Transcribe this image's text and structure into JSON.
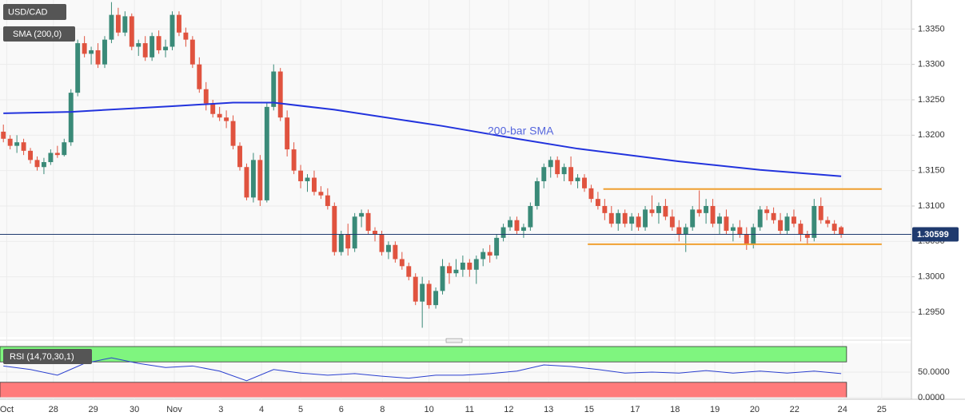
{
  "chart_data": [
    {
      "type": "candlestick",
      "title": "USD/CAD",
      "indicator": "SMA (200,0)",
      "up_color": "#3a8a78",
      "down_color": "#e0533f",
      "ohlc": [
        [
          1.3205,
          1.3215,
          1.319,
          1.3195
        ],
        [
          1.3195,
          1.32,
          1.318,
          1.3185
        ],
        [
          1.3185,
          1.32,
          1.3175,
          1.319
        ],
        [
          1.319,
          1.3195,
          1.3172,
          1.3178
        ],
        [
          1.3178,
          1.3182,
          1.316,
          1.3165
        ],
        [
          1.3165,
          1.317,
          1.315,
          1.3155
        ],
        [
          1.3155,
          1.3168,
          1.3145,
          1.3162
        ],
        [
          1.3162,
          1.318,
          1.3158,
          1.3175
        ],
        [
          1.3175,
          1.3185,
          1.3168,
          1.3172
        ],
        [
          1.3172,
          1.3195,
          1.317,
          1.319
        ],
        [
          1.319,
          1.3265,
          1.3185,
          1.326
        ],
        [
          1.326,
          1.3335,
          1.3255,
          1.333
        ],
        [
          1.333,
          1.334,
          1.331,
          1.3315
        ],
        [
          1.3315,
          1.3325,
          1.33,
          1.332
        ],
        [
          1.332,
          1.333,
          1.3295,
          1.33
        ],
        [
          1.33,
          1.334,
          1.3295,
          1.3335
        ],
        [
          1.3335,
          1.3388,
          1.333,
          1.337
        ],
        [
          1.337,
          1.338,
          1.334,
          1.3345
        ],
        [
          1.3345,
          1.3375,
          1.334,
          1.3368
        ],
        [
          1.3368,
          1.3372,
          1.332,
          1.3325
        ],
        [
          1.3325,
          1.3335,
          1.3312,
          1.333
        ],
        [
          1.333,
          1.334,
          1.3305,
          1.331
        ],
        [
          1.331,
          1.3345,
          1.3305,
          1.334
        ],
        [
          1.334,
          1.3348,
          1.3315,
          1.332
        ],
        [
          1.332,
          1.3335,
          1.331,
          1.3325
        ],
        [
          1.3325,
          1.3375,
          1.332,
          1.337
        ],
        [
          1.337,
          1.3375,
          1.334,
          1.3345
        ],
        [
          1.3345,
          1.3352,
          1.3325,
          1.3335
        ],
        [
          1.3335,
          1.334,
          1.3295,
          1.33
        ],
        [
          1.33,
          1.331,
          1.326,
          1.3265
        ],
        [
          1.3265,
          1.3275,
          1.3235,
          1.3245
        ],
        [
          1.3245,
          1.325,
          1.3225,
          1.323
        ],
        [
          1.323,
          1.324,
          1.322,
          1.3225
        ],
        [
          1.3225,
          1.3235,
          1.321,
          1.322
        ],
        [
          1.322,
          1.3228,
          1.318,
          1.3185
        ],
        [
          1.3185,
          1.319,
          1.315,
          1.3155
        ],
        [
          1.3155,
          1.316,
          1.3108,
          1.3112
        ],
        [
          1.3112,
          1.3175,
          1.3105,
          1.3165
        ],
        [
          1.3165,
          1.3172,
          1.31,
          1.3108
        ],
        [
          1.3108,
          1.3245,
          1.3105,
          1.324
        ],
        [
          1.324,
          1.33,
          1.3235,
          1.329
        ],
        [
          1.329,
          1.3295,
          1.322,
          1.3225
        ],
        [
          1.3225,
          1.3235,
          1.317,
          1.318
        ],
        [
          1.318,
          1.319,
          1.3145,
          1.315
        ],
        [
          1.315,
          1.3158,
          1.3125,
          1.3135
        ],
        [
          1.3135,
          1.3145,
          1.312,
          1.314
        ],
        [
          1.314,
          1.315,
          1.3115,
          1.312
        ],
        [
          1.312,
          1.3128,
          1.311,
          1.3115
        ],
        [
          1.3115,
          1.3125,
          1.3095,
          1.31
        ],
        [
          1.31,
          1.3105,
          1.303,
          1.3035
        ],
        [
          1.3035,
          1.3065,
          1.303,
          1.306
        ],
        [
          1.306,
          1.3075,
          1.303,
          1.304
        ],
        [
          1.304,
          1.309,
          1.3035,
          1.3085
        ],
        [
          1.3085,
          1.3095,
          1.307,
          1.309
        ],
        [
          1.309,
          1.3095,
          1.306,
          1.3065
        ],
        [
          1.3065,
          1.307,
          1.305,
          1.306
        ],
        [
          1.306,
          1.3065,
          1.303,
          1.3035
        ],
        [
          1.3035,
          1.305,
          1.3025,
          1.3045
        ],
        [
          1.3045,
          1.305,
          1.302,
          1.3025
        ],
        [
          1.3025,
          1.3035,
          1.301,
          1.3015
        ],
        [
          1.3015,
          1.302,
          1.2995,
          1.3
        ],
        [
          1.3,
          1.3005,
          1.296,
          1.2965
        ],
        [
          1.2965,
          1.3,
          1.2928,
          1.299
        ],
        [
          1.299,
          1.2995,
          1.2955,
          1.296
        ],
        [
          1.296,
          1.2985,
          1.2955,
          1.298
        ],
        [
          1.298,
          1.3025,
          1.2975,
          1.3015
        ],
        [
          1.3015,
          1.302,
          1.299,
          1.3005
        ],
        [
          1.3005,
          1.3025,
          1.3,
          1.301
        ],
        [
          1.301,
          1.303,
          1.3,
          1.302
        ],
        [
          1.302,
          1.3025,
          1.3,
          1.301
        ],
        [
          1.301,
          1.303,
          1.299,
          1.3025
        ],
        [
          1.3025,
          1.304,
          1.3015,
          1.3035
        ],
        [
          1.3035,
          1.3045,
          1.302,
          1.303
        ],
        [
          1.303,
          1.306,
          1.3025,
          1.3055
        ],
        [
          1.3055,
          1.3075,
          1.305,
          1.307
        ],
        [
          1.307,
          1.3085,
          1.3065,
          1.308
        ],
        [
          1.308,
          1.3085,
          1.306,
          1.3065
        ],
        [
          1.3065,
          1.3075,
          1.3055,
          1.307
        ],
        [
          1.307,
          1.3105,
          1.3065,
          1.31
        ],
        [
          1.31,
          1.314,
          1.3095,
          1.3135
        ],
        [
          1.3135,
          1.316,
          1.3125,
          1.3155
        ],
        [
          1.3155,
          1.317,
          1.314,
          1.3165
        ],
        [
          1.3165,
          1.317,
          1.314,
          1.3145
        ],
        [
          1.3145,
          1.316,
          1.3135,
          1.3155
        ],
        [
          1.3155,
          1.317,
          1.313,
          1.3135
        ],
        [
          1.3135,
          1.3145,
          1.3125,
          1.314
        ],
        [
          1.314,
          1.3145,
          1.312,
          1.3125
        ],
        [
          1.3125,
          1.313,
          1.3105,
          1.311
        ],
        [
          1.311,
          1.312,
          1.3095,
          1.31
        ],
        [
          1.31,
          1.311,
          1.308,
          1.309
        ],
        [
          1.309,
          1.31,
          1.307,
          1.3075
        ],
        [
          1.3075,
          1.3095,
          1.3065,
          1.309
        ],
        [
          1.309,
          1.3095,
          1.307,
          1.3075
        ],
        [
          1.3075,
          1.309,
          1.3065,
          1.3085
        ],
        [
          1.3085,
          1.309,
          1.3065,
          1.307
        ],
        [
          1.307,
          1.31,
          1.3065,
          1.3095
        ],
        [
          1.3095,
          1.3115,
          1.3085,
          1.309
        ],
        [
          1.309,
          1.3105,
          1.3075,
          1.31
        ],
        [
          1.31,
          1.311,
          1.308,
          1.3085
        ],
        [
          1.3085,
          1.3095,
          1.3065,
          1.307
        ],
        [
          1.307,
          1.308,
          1.305,
          1.306
        ],
        [
          1.306,
          1.3075,
          1.3035,
          1.307
        ],
        [
          1.307,
          1.31,
          1.3065,
          1.3095
        ],
        [
          1.3095,
          1.3122,
          1.3085,
          1.309
        ],
        [
          1.309,
          1.311,
          1.3075,
          1.31
        ],
        [
          1.31,
          1.311,
          1.307,
          1.3075
        ],
        [
          1.3075,
          1.309,
          1.306,
          1.3085
        ],
        [
          1.3085,
          1.3095,
          1.306,
          1.3065
        ],
        [
          1.3065,
          1.3075,
          1.305,
          1.307
        ],
        [
          1.307,
          1.308,
          1.3055,
          1.306
        ],
        [
          1.306,
          1.307,
          1.3038,
          1.3045
        ],
        [
          1.3045,
          1.3075,
          1.304,
          1.307
        ],
        [
          1.307,
          1.31,
          1.3065,
          1.3095
        ],
        [
          1.3095,
          1.31,
          1.308,
          1.309
        ],
        [
          1.309,
          1.3098,
          1.3075,
          1.308
        ],
        [
          1.308,
          1.309,
          1.306,
          1.3065
        ],
        [
          1.3065,
          1.309,
          1.306,
          1.3085
        ],
        [
          1.3085,
          1.3095,
          1.307,
          1.3075
        ],
        [
          1.3075,
          1.308,
          1.305,
          1.306
        ],
        [
          1.306,
          1.3065,
          1.3045,
          1.3055
        ],
        [
          1.3055,
          1.311,
          1.305,
          1.31
        ],
        [
          1.31,
          1.3112,
          1.3075,
          1.308
        ],
        [
          1.308,
          1.3085,
          1.307,
          1.3075
        ],
        [
          1.3075,
          1.308,
          1.306,
          1.3065
        ],
        [
          1.307,
          1.3072,
          1.3055,
          1.306
        ]
      ],
      "sma": {
        "name": "200-bar SMA",
        "color": "#2233dd",
        "label_color": "#5566dd",
        "x": [
          0,
          10,
          25,
          34,
          40,
          49,
          65,
          76,
          85,
          100,
          112,
          124
        ],
        "values": [
          1.3231,
          1.3233,
          1.3241,
          1.3246,
          1.3246,
          1.3236,
          1.3213,
          1.3195,
          1.3181,
          1.3163,
          1.3151,
          1.3142
        ]
      },
      "levels": [
        {
          "value": 1.3124,
          "from": 88.8,
          "to": 130
        },
        {
          "value": 1.3046,
          "from": 86.5,
          "to": 130
        }
      ],
      "level_color": "#f0a030",
      "last_price": 1.30599,
      "last_color": "#1f3a6e",
      "xlim": [
        -0.5,
        134.4
      ],
      "ylim": [
        1.2915,
        1.3391
      ],
      "xticks": [
        {
          "value": 0.5,
          "label": "Oct"
        },
        {
          "value": 7.4,
          "label": "28"
        },
        {
          "value": 13.3,
          "label": "29"
        },
        {
          "value": 19.4,
          "label": "30"
        },
        {
          "value": 25.3,
          "label": "Nov"
        },
        {
          "value": 32.2,
          "label": "3"
        },
        {
          "value": 38.2,
          "label": "4"
        },
        {
          "value": 44,
          "label": "5"
        },
        {
          "value": 50,
          "label": "6"
        },
        {
          "value": 56.1,
          "label": "8"
        },
        {
          "value": 63,
          "label": "10"
        },
        {
          "value": 69,
          "label": "11"
        },
        {
          "value": 74.8,
          "label": "12"
        },
        {
          "value": 80.7,
          "label": "13"
        },
        {
          "value": 86.7,
          "label": "15"
        },
        {
          "value": 93.5,
          "label": "17"
        },
        {
          "value": 99.4,
          "label": "18"
        },
        {
          "value": 105.3,
          "label": "19"
        },
        {
          "value": 111.2,
          "label": "20"
        },
        {
          "value": 117.1,
          "label": "22"
        },
        {
          "value": 124.2,
          "label": "24"
        },
        {
          "value": 130,
          "label": "25"
        }
      ],
      "yticks": [
        {
          "value": 1.335,
          "label": "1.3350"
        },
        {
          "value": 1.33,
          "label": "1.3300"
        },
        {
          "value": 1.325,
          "label": "1.3250"
        },
        {
          "value": 1.32,
          "label": "1.3200"
        },
        {
          "value": 1.315,
          "label": "1.3150"
        },
        {
          "value": 1.31,
          "label": "1.3100"
        },
        {
          "value": 1.305,
          "label": "1.3050"
        },
        {
          "value": 1.3,
          "label": "1.3000"
        },
        {
          "value": 1.295,
          "label": "1.2950"
        }
      ],
      "grid": true
    },
    {
      "type": "line",
      "title": "RSI (14,70,30,1)",
      "color": "#2a3fcf",
      "x": [
        0,
        4,
        8,
        12,
        16,
        20,
        24,
        28,
        32,
        36,
        40,
        44,
        48,
        52,
        56,
        60,
        64,
        68,
        72,
        76,
        80,
        84,
        88,
        92,
        96,
        100,
        104,
        108,
        112,
        116,
        120,
        124
      ],
      "values": [
        62,
        55,
        44,
        67,
        78,
        67,
        59,
        62,
        52,
        33,
        55,
        48,
        44,
        47,
        42,
        38,
        44,
        44,
        47,
        52,
        64,
        61,
        55,
        48,
        50,
        48,
        53,
        48,
        52,
        48,
        52,
        47
      ],
      "bands": [
        {
          "from": 70,
          "to": 100,
          "color": "#7ff57f"
        },
        {
          "from": 0,
          "to": 30,
          "color": "#ff7b7b"
        }
      ],
      "xlim": [
        -0.5,
        134.4
      ],
      "ylim": [
        0,
        100
      ],
      "yticks": [
        {
          "value": 50,
          "label": "50.0000"
        },
        {
          "value": 0,
          "label": "0.0000"
        }
      ]
    }
  ]
}
